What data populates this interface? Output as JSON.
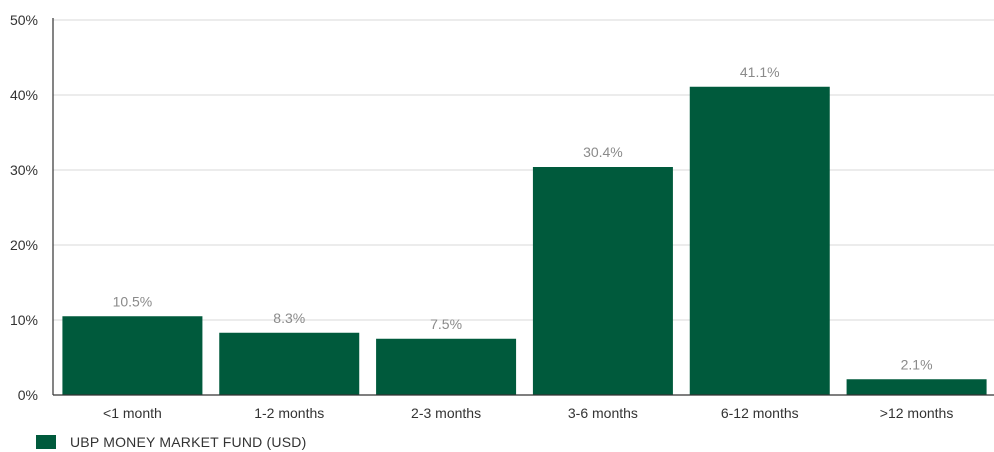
{
  "chart_data": {
    "type": "bar",
    "categories": [
      "<1 month",
      "1-2 months",
      "2-3 months",
      "3-6 months",
      "6-12 months",
      ">12 months"
    ],
    "series": [
      {
        "name": "UBP MONEY MARKET FUND (USD)",
        "values": [
          10.5,
          8.3,
          7.5,
          30.4,
          41.1,
          2.1
        ],
        "value_labels": [
          "10.5%",
          "8.3%",
          "7.5%",
          "30.4%",
          "41.1%",
          "2.1%"
        ]
      }
    ],
    "yticks": [
      "0%",
      "10%",
      "20%",
      "30%",
      "40%",
      "50%"
    ],
    "ylim": [
      0,
      50
    ],
    "grid": true,
    "legend": "bottom-left",
    "colors": {
      "bar": "#005a3c",
      "grid": "#d9d9d9",
      "axis": "#333333",
      "value_label": "#8a8a8a"
    }
  }
}
